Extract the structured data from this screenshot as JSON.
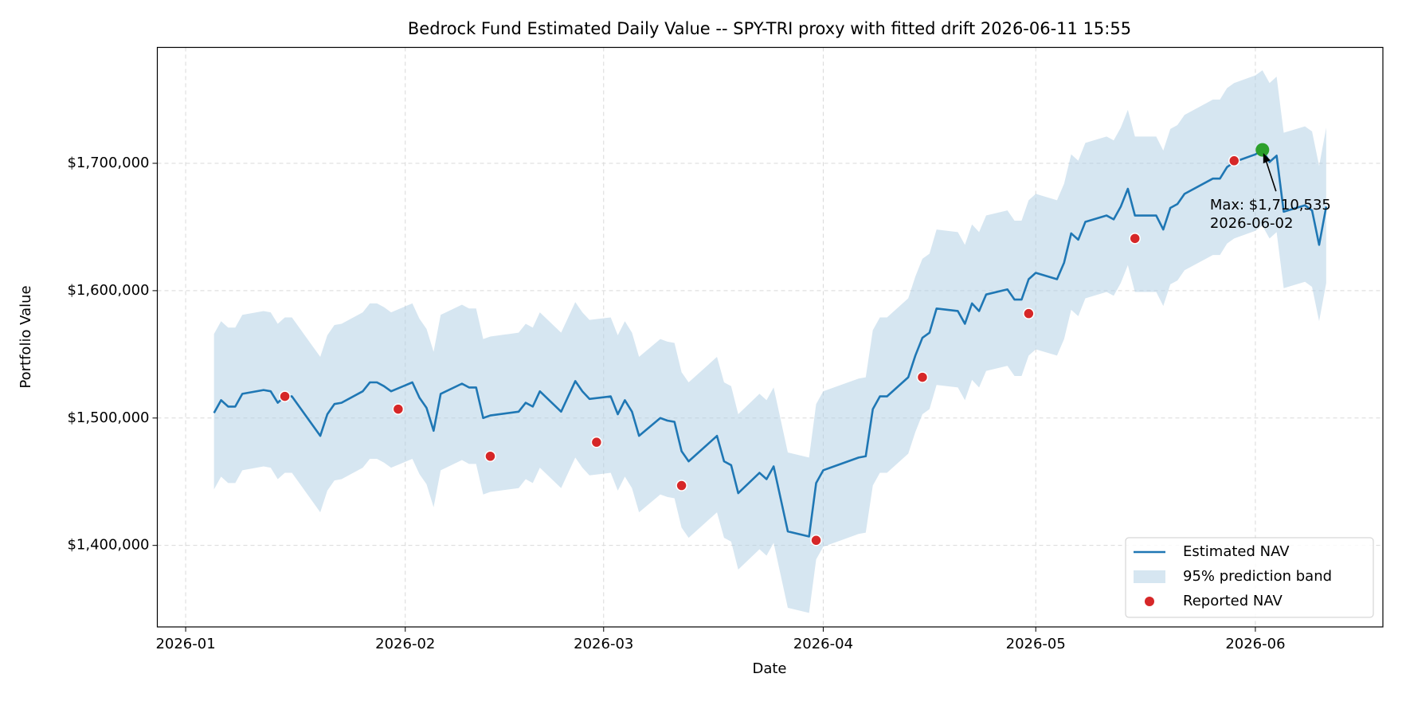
{
  "chart_data": {
    "type": "line",
    "title": "Bedrock Fund Estimated Daily Value -- SPY-TRI proxy with fitted drift 2026-06-11 15:55",
    "x_label": "Date",
    "y_label": "Portfolio Value",
    "grid": true,
    "legend": "lower right",
    "xlim": [
      "2025-12-28",
      "2026-06-19"
    ],
    "xticks": [
      {
        "value": "2026-01-01",
        "label": "2026-01"
      },
      {
        "value": "2026-02-01",
        "label": "2026-02"
      },
      {
        "value": "2026-03-01",
        "label": "2026-03"
      },
      {
        "value": "2026-04-01",
        "label": "2026-04"
      },
      {
        "value": "2026-05-01",
        "label": "2026-05"
      },
      {
        "value": "2026-06-01",
        "label": "2026-06"
      }
    ],
    "ylim": [
      1336000,
      1791000
    ],
    "yticks": [
      {
        "value": 1400000,
        "label": "$1,400,000"
      },
      {
        "value": 1500000,
        "label": "$1,500,000"
      },
      {
        "value": 1600000,
        "label": "$1,600,000"
      },
      {
        "value": 1700000,
        "label": "$1,700,000"
      }
    ],
    "x": [
      "2026-01-05",
      "2026-01-06",
      "2026-01-07",
      "2026-01-08",
      "2026-01-09",
      "2026-01-12",
      "2026-01-13",
      "2026-01-14",
      "2026-01-15",
      "2026-01-16",
      "2026-01-20",
      "2026-01-21",
      "2026-01-22",
      "2026-01-23",
      "2026-01-26",
      "2026-01-27",
      "2026-01-28",
      "2026-01-29",
      "2026-01-30",
      "2026-02-02",
      "2026-02-03",
      "2026-02-04",
      "2026-02-05",
      "2026-02-06",
      "2026-02-09",
      "2026-02-10",
      "2026-02-11",
      "2026-02-12",
      "2026-02-13",
      "2026-02-17",
      "2026-02-18",
      "2026-02-19",
      "2026-02-20",
      "2026-02-23",
      "2026-02-24",
      "2026-02-25",
      "2026-02-26",
      "2026-02-27",
      "2026-03-02",
      "2026-03-03",
      "2026-03-04",
      "2026-03-05",
      "2026-03-06",
      "2026-03-09",
      "2026-03-10",
      "2026-03-11",
      "2026-03-12",
      "2026-03-13",
      "2026-03-16",
      "2026-03-17",
      "2026-03-18",
      "2026-03-19",
      "2026-03-20",
      "2026-03-23",
      "2026-03-24",
      "2026-03-25",
      "2026-03-27",
      "2026-03-30",
      "2026-03-31",
      "2026-04-01",
      "2026-04-02",
      "2026-04-06",
      "2026-04-07",
      "2026-04-08",
      "2026-04-09",
      "2026-04-10",
      "2026-04-13",
      "2026-04-14",
      "2026-04-15",
      "2026-04-16",
      "2026-04-17",
      "2026-04-20",
      "2026-04-21",
      "2026-04-22",
      "2026-04-23",
      "2026-04-24",
      "2026-04-27",
      "2026-04-28",
      "2026-04-29",
      "2026-04-30",
      "2026-05-01",
      "2026-05-04",
      "2026-05-05",
      "2026-05-06",
      "2026-05-07",
      "2026-05-08",
      "2026-05-11",
      "2026-05-12",
      "2026-05-13",
      "2026-05-14",
      "2026-05-15",
      "2026-05-18",
      "2026-05-19",
      "2026-05-20",
      "2026-05-21",
      "2026-05-22",
      "2026-05-26",
      "2026-05-27",
      "2026-05-28",
      "2026-05-29",
      "2026-06-01",
      "2026-06-02",
      "2026-06-03",
      "2026-06-04",
      "2026-06-05",
      "2026-06-08",
      "2026-06-09",
      "2026-06-10",
      "2026-06-11"
    ],
    "series": [
      {
        "name": "Estimated NAV",
        "color": "#1f77b4",
        "values": [
          1504000,
          1514000,
          1509000,
          1509000,
          1519000,
          1522000,
          1521000,
          1512000,
          1517000,
          1517000,
          1486000,
          1503000,
          1511000,
          1512000,
          1521000,
          1528000,
          1528000,
          1525000,
          1521000,
          1528000,
          1516000,
          1508000,
          1490000,
          1519000,
          1527000,
          1524000,
          1524000,
          1500000,
          1502000,
          1505000,
          1512000,
          1509000,
          1521000,
          1505000,
          1517000,
          1529000,
          1521000,
          1515000,
          1517000,
          1503000,
          1514000,
          1505000,
          1486000,
          1500000,
          1498000,
          1497000,
          1474000,
          1466000,
          1481000,
          1486000,
          1466000,
          1463000,
          1441000,
          1457000,
          1452000,
          1462000,
          1411000,
          1407000,
          1449000,
          1459000,
          1461000,
          1469000,
          1470000,
          1507000,
          1517000,
          1517000,
          1532000,
          1549000,
          1563000,
          1567000,
          1586000,
          1584000,
          1574000,
          1590000,
          1584000,
          1597000,
          1601000,
          1593000,
          1593000,
          1609000,
          1614000,
          1609000,
          1622000,
          1645000,
          1640000,
          1654000,
          1659000,
          1656000,
          1666000,
          1680000,
          1659000,
          1659000,
          1648000,
          1665000,
          1668000,
          1676000,
          1688000,
          1688000,
          1697000,
          1701000,
          1707000,
          1710535,
          1701000,
          1706000,
          1662000,
          1667000,
          1663000,
          1636000,
          1666000
        ]
      },
      {
        "name": "95% prediction band",
        "color": "#aecde4",
        "upper": [
          1566000,
          1576000,
          1571000,
          1571000,
          1581000,
          1584000,
          1583000,
          1574000,
          1579000,
          1579000,
          1548000,
          1565000,
          1573000,
          1574000,
          1583000,
          1590000,
          1590000,
          1587000,
          1583000,
          1590000,
          1578000,
          1570000,
          1552000,
          1581000,
          1589000,
          1586000,
          1586000,
          1562000,
          1564000,
          1567000,
          1574000,
          1571000,
          1583000,
          1567000,
          1579000,
          1591000,
          1583000,
          1577000,
          1579000,
          1565000,
          1576000,
          1567000,
          1548000,
          1562000,
          1560000,
          1559000,
          1536000,
          1528000,
          1543000,
          1548000,
          1528000,
          1525000,
          1503000,
          1519000,
          1514000,
          1524000,
          1473000,
          1469000,
          1511000,
          1521000,
          1523000,
          1531000,
          1532000,
          1569000,
          1579000,
          1579000,
          1594000,
          1611000,
          1625000,
          1629000,
          1648000,
          1646000,
          1636000,
          1652000,
          1646000,
          1659000,
          1663000,
          1655000,
          1655000,
          1671000,
          1676000,
          1671000,
          1684000,
          1707000,
          1702000,
          1716000,
          1721000,
          1718000,
          1728000,
          1742000,
          1721000,
          1721000,
          1710000,
          1727000,
          1730000,
          1738000,
          1750000,
          1750000,
          1759000,
          1763000,
          1769000,
          1773000,
          1763000,
          1768000,
          1724000,
          1729000,
          1725000,
          1698000,
          1728000
        ],
        "lower": [
          1444000,
          1454000,
          1449000,
          1449000,
          1459000,
          1462000,
          1461000,
          1452000,
          1457000,
          1457000,
          1426000,
          1443000,
          1451000,
          1452000,
          1461000,
          1468000,
          1468000,
          1465000,
          1461000,
          1468000,
          1456000,
          1448000,
          1430000,
          1459000,
          1467000,
          1464000,
          1464000,
          1440000,
          1442000,
          1445000,
          1452000,
          1449000,
          1461000,
          1445000,
          1457000,
          1469000,
          1461000,
          1455000,
          1457000,
          1443000,
          1454000,
          1445000,
          1426000,
          1440000,
          1438000,
          1437000,
          1414000,
          1406000,
          1421000,
          1426000,
          1406000,
          1403000,
          1381000,
          1397000,
          1392000,
          1402000,
          1351000,
          1347000,
          1389000,
          1399000,
          1401000,
          1409000,
          1410000,
          1447000,
          1457000,
          1457000,
          1472000,
          1489000,
          1503000,
          1507000,
          1526000,
          1524000,
          1514000,
          1530000,
          1524000,
          1537000,
          1541000,
          1533000,
          1533000,
          1549000,
          1554000,
          1549000,
          1562000,
          1585000,
          1580000,
          1594000,
          1599000,
          1596000,
          1606000,
          1620000,
          1599000,
          1599000,
          1588000,
          1605000,
          1608000,
          1616000,
          1628000,
          1628000,
          1637000,
          1641000,
          1647000,
          1651000,
          1641000,
          1646000,
          1602000,
          1607000,
          1603000,
          1576000,
          1606000
        ]
      },
      {
        "name": "Reported NAV",
        "color": "#d62728",
        "x": [
          "2026-01-15",
          "2026-01-31",
          "2026-02-13",
          "2026-02-28",
          "2026-03-12",
          "2026-03-31",
          "2026-04-15",
          "2026-04-30",
          "2026-05-15",
          "2026-05-29"
        ],
        "values": [
          1517000,
          1507000,
          1470000,
          1481000,
          1447000,
          1404000,
          1532000,
          1582000,
          1641000,
          1702000
        ]
      }
    ],
    "max_point": {
      "x": "2026-06-02",
      "value": 1710535,
      "color": "#2ca02c",
      "label": "Max: $1,710,535",
      "date_label": "2026-06-02"
    }
  }
}
